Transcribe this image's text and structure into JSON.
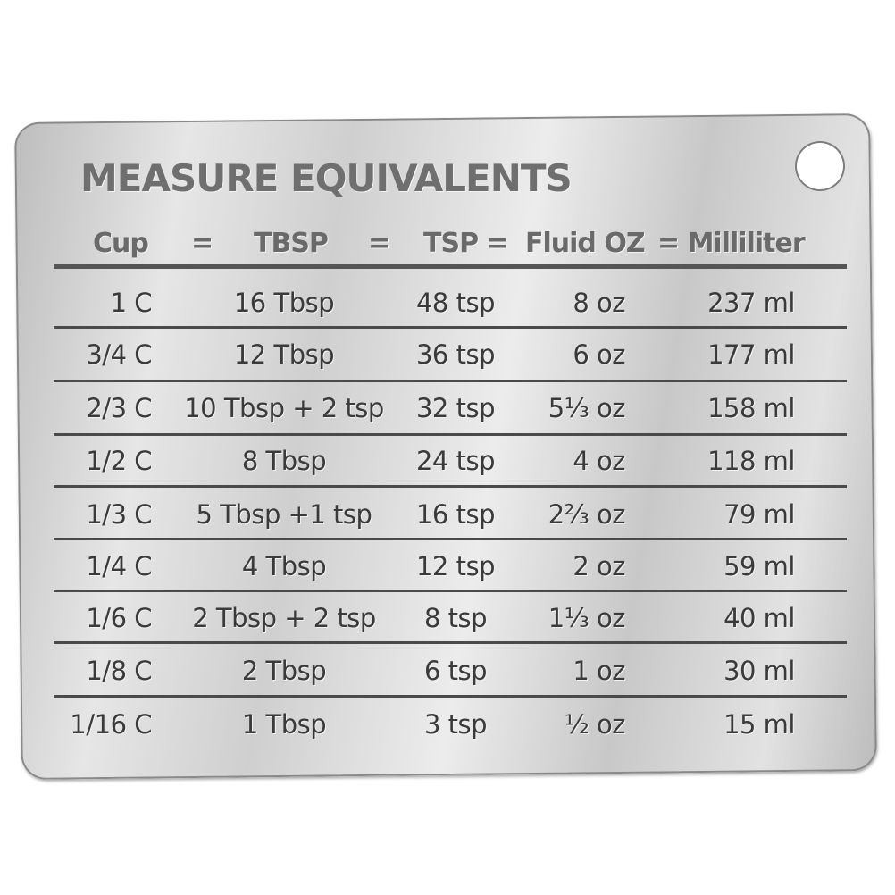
{
  "title": "MEASURE EQUIVALENTS",
  "header": {
    "cup": "Cup",
    "eq1": "=",
    "tbsp": "TBSP",
    "eq2": "=",
    "tsp": "TSP =",
    "floz": "Fluid OZ",
    "ml": "= Milliliter"
  },
  "rows": [
    {
      "cup": "1 C",
      "tbsp": "16 Tbsp",
      "tsp": "48 tsp",
      "oz": "8 oz",
      "ml": "237 ml"
    },
    {
      "cup": "3/4 C",
      "tbsp": "12 Tbsp",
      "tsp": "36 tsp",
      "oz": "6 oz",
      "ml": "177 ml"
    },
    {
      "cup": "2/3 C",
      "tbsp": "10 Tbsp + 2 tsp",
      "tsp": "32 tsp",
      "oz": "5⅓ oz",
      "ml": "158 ml"
    },
    {
      "cup": "1/2 C",
      "tbsp": "8 Tbsp",
      "tsp": "24 tsp",
      "oz": "4 oz",
      "ml": "118 ml"
    },
    {
      "cup": "1/3 C",
      "tbsp": "5 Tbsp +1 tsp",
      "tsp": "16 tsp",
      "oz": "2⅔ oz",
      "ml": "79 ml"
    },
    {
      "cup": "1/4 C",
      "tbsp": "4 Tbsp",
      "tsp": "12 tsp",
      "oz": "2 oz",
      "ml": "59 ml"
    },
    {
      "cup": "1/6 C",
      "tbsp": "2 Tbsp + 2 tsp",
      "tsp": "8 tsp",
      "oz": "1⅓ oz",
      "ml": "40 ml"
    },
    {
      "cup": "1/8 C",
      "tbsp": "2 Tbsp",
      "tsp": "6 tsp",
      "oz": "1 oz",
      "ml": "30 ml"
    },
    {
      "cup": "1/16 C",
      "tbsp": "1 Tbsp",
      "tsp": "3 tsp",
      "oz": "½ oz",
      "ml": "15 ml"
    }
  ]
}
